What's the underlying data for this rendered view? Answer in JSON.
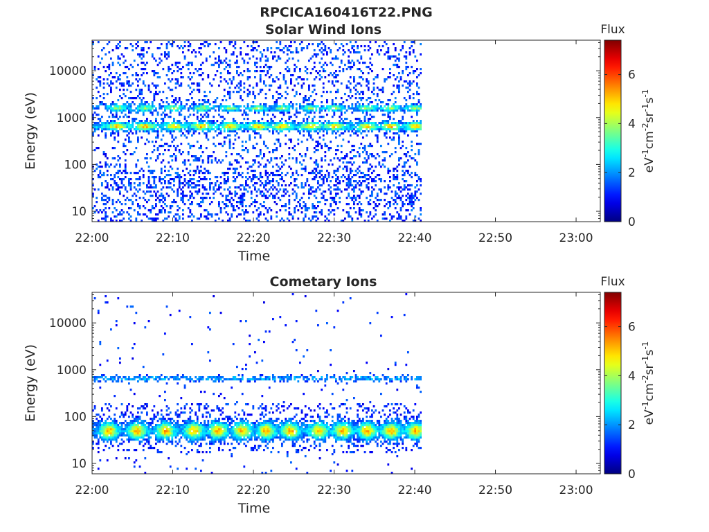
{
  "figure": {
    "title": "RPCICA160416T22.PNG"
  },
  "chart_data": [
    {
      "type": "heatmap",
      "title": "Solar Wind Ions",
      "xlabel": "Time",
      "ylabel": "Energy (eV)",
      "x_range": [
        "22:00",
        "23:03"
      ],
      "x_ticks": [
        "22:00",
        "22:10",
        "22:20",
        "22:30",
        "22:40",
        "22:50",
        "23:00"
      ],
      "y_scale": "log",
      "y_range": [
        6,
        45000
      ],
      "y_ticks": [
        "10",
        "100",
        "1000",
        "10000"
      ],
      "data_extent_time": [
        "22:00",
        "22:41"
      ],
      "colorbar": {
        "title": "Flux",
        "label": "eV-1cm-2sr-1s-1",
        "range": [
          0,
          7.4
        ],
        "ticks": [
          "0",
          "2",
          "4",
          "6"
        ],
        "colormap": "jet"
      },
      "features": [
        {
          "energy_eV": 650,
          "flux": 4.2,
          "description_band": "primary"
        },
        {
          "energy_eV": 1600,
          "flux": 3.0,
          "description_band": "secondary"
        }
      ],
      "peak_times_min": [
        3,
        6.5,
        10,
        13.5,
        17,
        20.5,
        23.5,
        27,
        30,
        34,
        37,
        40
      ]
    },
    {
      "type": "heatmap",
      "title": "Cometary Ions",
      "xlabel": "Time",
      "ylabel": "Energy (eV)",
      "x_range": [
        "22:00",
        "23:03"
      ],
      "x_ticks": [
        "22:00",
        "22:10",
        "22:20",
        "22:30",
        "22:40",
        "22:50",
        "23:00"
      ],
      "y_scale": "log",
      "y_range": [
        6,
        45000
      ],
      "y_ticks": [
        "10",
        "100",
        "1000",
        "10000"
      ],
      "data_extent_time": [
        "22:00",
        "22:41"
      ],
      "colorbar": {
        "title": "Flux",
        "label": "eV-1cm-2sr-1s-1",
        "range": [
          0,
          7.4
        ],
        "ticks": [
          "0",
          "2",
          "4",
          "6"
        ],
        "colormap": "jet"
      },
      "features": [
        {
          "energy_eV": 50,
          "flux": 4.5,
          "description_band": "primary"
        },
        {
          "energy_eV": 650,
          "flux": 1.5,
          "description_band": "secondary"
        }
      ],
      "peak_times_min": [
        2,
        5.5,
        9,
        12.5,
        15.5,
        18.5,
        21.5,
        24.5,
        28,
        31,
        34,
        37,
        40
      ]
    }
  ]
}
